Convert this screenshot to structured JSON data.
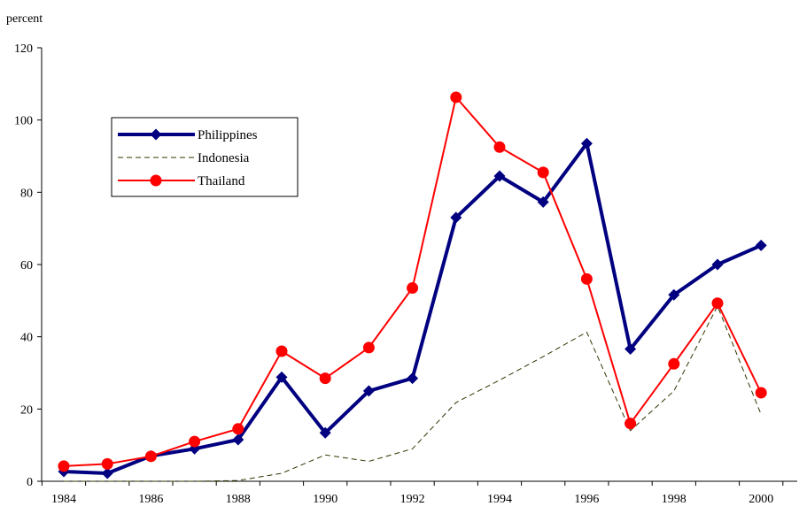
{
  "chart_data": {
    "type": "line",
    "ylabel": "percent",
    "ylim": [
      0,
      120
    ],
    "yticks": [
      0,
      20,
      40,
      60,
      80,
      100,
      120
    ],
    "xlim": [
      1984,
      2000
    ],
    "xticks": [
      "1984",
      "1986",
      "1988",
      "1990",
      "1992",
      "1994",
      "1996",
      "1998",
      "2000"
    ],
    "x": [
      1984,
      1985,
      1986,
      1987,
      1988,
      1989,
      1990,
      1991,
      1992,
      1993,
      1994,
      1995,
      1996,
      1997,
      1998,
      1999,
      2000
    ],
    "legend_position": "upper-left",
    "grid": false,
    "series": [
      {
        "name": "Philippines",
        "color": "#000080",
        "style": "solid-thick",
        "marker": "diamond",
        "values": [
          2.7,
          2.2,
          7.0,
          9.0,
          11.5,
          28.8,
          13.4,
          25.0,
          28.5,
          73.0,
          84.5,
          77.3,
          93.5,
          36.6,
          51.6,
          60.0,
          65.3
        ]
      },
      {
        "name": "Indonesia",
        "color": "#333300",
        "style": "dashed",
        "marker": "none",
        "values": [
          0.0,
          0.0,
          0.0,
          0.0,
          0.2,
          2.2,
          7.3,
          5.5,
          9.0,
          21.8,
          28.0,
          34.5,
          41.3,
          14.0,
          25.0,
          48.5,
          18.5
        ]
      },
      {
        "name": "Thailand",
        "color": "#ff0000",
        "style": "solid",
        "marker": "circle",
        "values": [
          4.2,
          4.8,
          6.9,
          11.0,
          14.5,
          36.0,
          28.5,
          37.0,
          53.5,
          106.3,
          92.5,
          85.5,
          56.0,
          16.0,
          32.5,
          49.3,
          24.5
        ]
      }
    ]
  }
}
